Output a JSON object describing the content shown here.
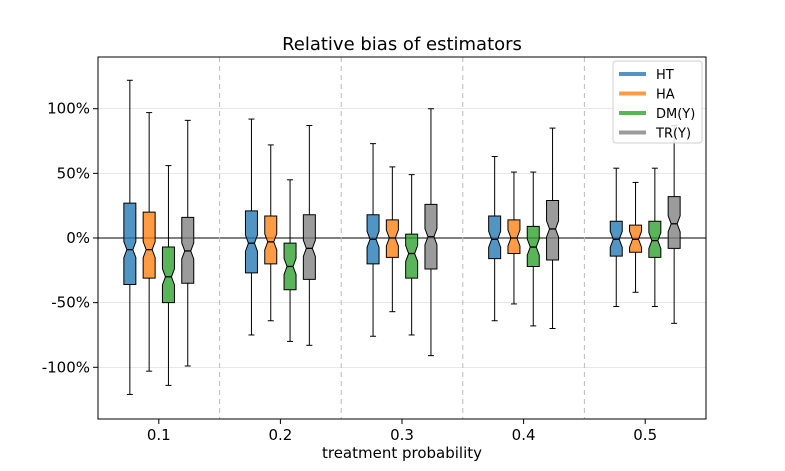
{
  "chart_data": {
    "type": "boxplot",
    "title": "Relative bias of estimators",
    "xlabel": "treatment probability",
    "ylabel": "",
    "categories": [
      "0.1",
      "0.2",
      "0.3",
      "0.4",
      "0.5"
    ],
    "ylim": [
      -140,
      140
    ],
    "yticks": [
      {
        "value": 100,
        "label": "100%"
      },
      {
        "value": 50,
        "label": "50%"
      },
      {
        "value": 0,
        "label": "0%"
      },
      {
        "value": -50,
        "label": "-50%"
      },
      {
        "value": -100,
        "label": "-100%"
      }
    ],
    "legend_position": "top-right",
    "series": [
      {
        "name": "HT",
        "color": "#1f77b4",
        "boxes": [
          {
            "whislo": -121,
            "q1": -36,
            "med": -9,
            "q3": 27,
            "whishi": 122
          },
          {
            "whislo": -75,
            "q1": -27,
            "med": -4,
            "q3": 21,
            "whishi": 92
          },
          {
            "whislo": -76,
            "q1": -20,
            "med": -1,
            "q3": 18,
            "whishi": 73
          },
          {
            "whislo": -64,
            "q1": -16,
            "med": -1,
            "q3": 17,
            "whishi": 63
          },
          {
            "whislo": -53,
            "q1": -14,
            "med": -1,
            "q3": 13,
            "whishi": 54
          }
        ]
      },
      {
        "name": "HA",
        "color": "#ff7f0e",
        "boxes": [
          {
            "whislo": -103,
            "q1": -31,
            "med": -9,
            "q3": 20,
            "whishi": 97
          },
          {
            "whislo": -64,
            "q1": -20,
            "med": -3,
            "q3": 17,
            "whishi": 72
          },
          {
            "whislo": -57,
            "q1": -15,
            "med": 0,
            "q3": 14,
            "whishi": 55
          },
          {
            "whislo": -51,
            "q1": -12,
            "med": 0,
            "q3": 14,
            "whishi": 51
          },
          {
            "whislo": -42,
            "q1": -11,
            "med": -1,
            "q3": 10,
            "whishi": 43
          }
        ]
      },
      {
        "name": "DM(Y)",
        "color": "#2ca02c",
        "boxes": [
          {
            "whislo": -114,
            "q1": -50,
            "med": -30,
            "q3": -7,
            "whishi": 56
          },
          {
            "whislo": -80,
            "q1": -40,
            "med": -22,
            "q3": -4,
            "whishi": 45
          },
          {
            "whislo": -75,
            "q1": -31,
            "med": -12,
            "q3": 3,
            "whishi": 49
          },
          {
            "whislo": -68,
            "q1": -22,
            "med": -7,
            "q3": 9,
            "whishi": 51
          },
          {
            "whislo": -53,
            "q1": -15,
            "med": -2,
            "q3": 13,
            "whishi": 54
          }
        ]
      },
      {
        "name": "TR(Y)",
        "color": "#7f7f7f",
        "boxes": [
          {
            "whislo": -99,
            "q1": -35,
            "med": -10,
            "q3": 16,
            "whishi": 91
          },
          {
            "whislo": -83,
            "q1": -32,
            "med": -8,
            "q3": 18,
            "whishi": 87
          },
          {
            "whislo": -91,
            "q1": -24,
            "med": 1,
            "q3": 26,
            "whishi": 100
          },
          {
            "whislo": -70,
            "q1": -17,
            "med": 7,
            "q3": 29,
            "whishi": 85
          },
          {
            "whislo": -66,
            "q1": -8,
            "med": 11,
            "q3": 32,
            "whishi": 87
          }
        ]
      }
    ]
  }
}
